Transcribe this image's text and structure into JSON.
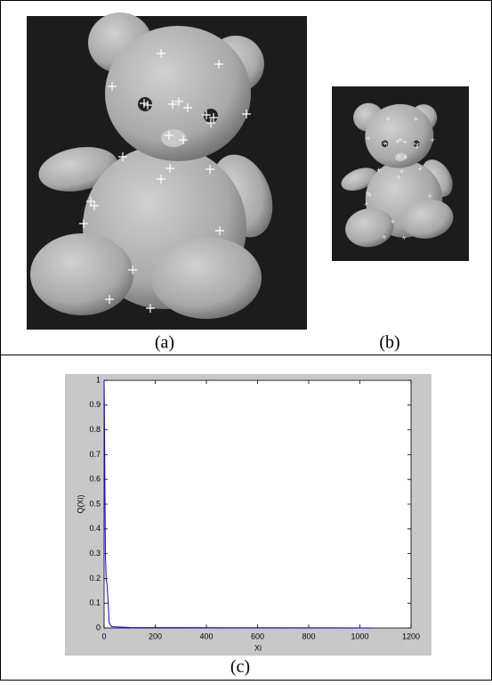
{
  "panels": [
    {
      "label": "(a)"
    },
    {
      "label": "(b)"
    }
  ],
  "chart_data": {
    "type": "line",
    "label": "(c)",
    "x_label": "Xi",
    "y_label": "Q(Xi)",
    "x": [
      0,
      1,
      3,
      5,
      8,
      12,
      16,
      20,
      30,
      100,
      500,
      1050
    ],
    "series": [
      {
        "name": "Q(Xi)",
        "color": "#0000ff",
        "values": [
          1,
          0.9,
          0.6,
          0.3,
          0.2,
          0.17,
          0.1,
          0.02,
          0.005,
          0.002,
          0.001,
          0
        ]
      }
    ],
    "xlim": [
      0,
      1200
    ],
    "ylim": [
      0,
      1
    ],
    "xticks": [
      0,
      200,
      400,
      600,
      800,
      1000,
      1200
    ],
    "yticks": [
      0,
      0.1,
      0.2,
      0.3,
      0.4,
      0.5,
      0.6,
      0.7,
      0.8,
      0.9,
      1
    ]
  }
}
